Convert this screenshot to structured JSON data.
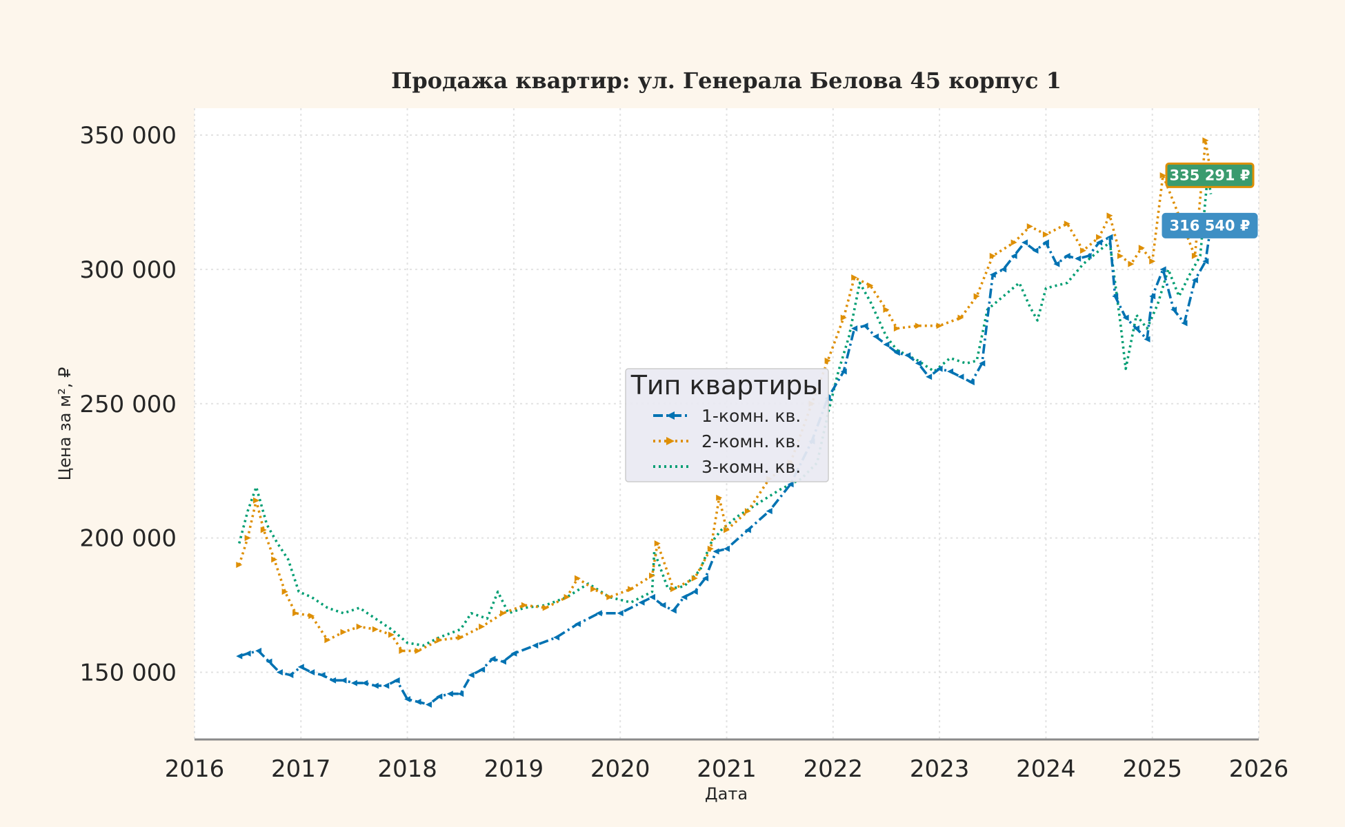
{
  "chart_data": {
    "type": "line",
    "title": "Продажа квартир: ул. Генерала Белова 45 корпус 1",
    "xlabel": "Дата",
    "ylabel": "Цена за м², ₽",
    "xlim": [
      2016,
      2026
    ],
    "ylim": [
      125000,
      360000
    ],
    "x_ticks": [
      "2016",
      "2017",
      "2018",
      "2019",
      "2020",
      "2021",
      "2022",
      "2023",
      "2024",
      "2025",
      "2026"
    ],
    "y_ticks": [
      150000,
      200000,
      250000,
      300000,
      350000
    ],
    "y_tick_labels": [
      "150 000",
      "200 000",
      "250 000",
      "300 000",
      "350 000"
    ],
    "grid": true,
    "legend": {
      "title": "Тип квартиры",
      "placement": "center",
      "entries": [
        "1-комн. кв.",
        "2-комн. кв.",
        "3-комн. кв."
      ]
    },
    "series": [
      {
        "name": "1-комн. кв.",
        "color": "#0072b2",
        "line_style": "dash-dot",
        "marker": "left-triangle",
        "end_label": "316 540 ₽",
        "end_value": 316540,
        "points": [
          [
            2016.42,
            156000
          ],
          [
            2016.5,
            157000
          ],
          [
            2016.6,
            158000
          ],
          [
            2016.7,
            154000
          ],
          [
            2016.8,
            150000
          ],
          [
            2016.9,
            149000
          ],
          [
            2017.0,
            152000
          ],
          [
            2017.1,
            150000
          ],
          [
            2017.2,
            149000
          ],
          [
            2017.3,
            147000
          ],
          [
            2017.4,
            147000
          ],
          [
            2017.5,
            146000
          ],
          [
            2017.6,
            146000
          ],
          [
            2017.7,
            145000
          ],
          [
            2017.8,
            145000
          ],
          [
            2017.9,
            147000
          ],
          [
            2018.0,
            140000
          ],
          [
            2018.1,
            139000
          ],
          [
            2018.2,
            138000
          ],
          [
            2018.3,
            141000
          ],
          [
            2018.4,
            142000
          ],
          [
            2018.5,
            142000
          ],
          [
            2018.6,
            149000
          ],
          [
            2018.7,
            151000
          ],
          [
            2018.8,
            155000
          ],
          [
            2018.9,
            154000
          ],
          [
            2019.0,
            157000
          ],
          [
            2019.2,
            160000
          ],
          [
            2019.4,
            163000
          ],
          [
            2019.6,
            168000
          ],
          [
            2019.8,
            172000
          ],
          [
            2020.0,
            172000
          ],
          [
            2020.2,
            176000
          ],
          [
            2020.3,
            178000
          ],
          [
            2020.4,
            175000
          ],
          [
            2020.5,
            173000
          ],
          [
            2020.6,
            178000
          ],
          [
            2020.7,
            180000
          ],
          [
            2020.8,
            185000
          ],
          [
            2020.9,
            195000
          ],
          [
            2021.0,
            196000
          ],
          [
            2021.2,
            203000
          ],
          [
            2021.4,
            210000
          ],
          [
            2021.6,
            220000
          ],
          [
            2021.8,
            236000
          ],
          [
            2021.95,
            252000
          ],
          [
            2022.1,
            262000
          ],
          [
            2022.2,
            278000
          ],
          [
            2022.3,
            279000
          ],
          [
            2022.4,
            275000
          ],
          [
            2022.5,
            272000
          ],
          [
            2022.6,
            269000
          ],
          [
            2022.7,
            268000
          ],
          [
            2022.8,
            265000
          ],
          [
            2022.9,
            260000
          ],
          [
            2023.0,
            263000
          ],
          [
            2023.1,
            262000
          ],
          [
            2023.2,
            260000
          ],
          [
            2023.3,
            258000
          ],
          [
            2023.4,
            265000
          ],
          [
            2023.5,
            298000
          ],
          [
            2023.6,
            300000
          ],
          [
            2023.7,
            305000
          ],
          [
            2023.8,
            310000
          ],
          [
            2023.9,
            307000
          ],
          [
            2024.0,
            310000
          ],
          [
            2024.1,
            302000
          ],
          [
            2024.2,
            305000
          ],
          [
            2024.3,
            304000
          ],
          [
            2024.4,
            305000
          ],
          [
            2024.5,
            310000
          ],
          [
            2024.6,
            312000
          ],
          [
            2024.65,
            290000
          ],
          [
            2024.75,
            282000
          ],
          [
            2024.85,
            278000
          ],
          [
            2024.95,
            274000
          ],
          [
            2025.0,
            290000
          ],
          [
            2025.1,
            300000
          ],
          [
            2025.2,
            285000
          ],
          [
            2025.3,
            280000
          ],
          [
            2025.4,
            296000
          ],
          [
            2025.5,
            303000
          ],
          [
            2025.55,
            316540
          ]
        ]
      },
      {
        "name": "2-комн. кв.",
        "color": "#de8f05",
        "line_style": "dotted",
        "marker": "right-triangle",
        "end_label": "335 291 ₽",
        "end_value": 335291,
        "points": [
          [
            2016.42,
            190000
          ],
          [
            2016.5,
            200000
          ],
          [
            2016.58,
            214000
          ],
          [
            2016.65,
            203000
          ],
          [
            2016.75,
            192000
          ],
          [
            2016.85,
            180000
          ],
          [
            2016.95,
            172000
          ],
          [
            2017.1,
            171000
          ],
          [
            2017.25,
            162000
          ],
          [
            2017.4,
            165000
          ],
          [
            2017.55,
            167000
          ],
          [
            2017.7,
            166000
          ],
          [
            2017.85,
            164000
          ],
          [
            2017.95,
            158000
          ],
          [
            2018.1,
            158000
          ],
          [
            2018.3,
            162000
          ],
          [
            2018.5,
            163000
          ],
          [
            2018.7,
            167000
          ],
          [
            2018.9,
            172000
          ],
          [
            2019.1,
            175000
          ],
          [
            2019.3,
            174000
          ],
          [
            2019.5,
            178000
          ],
          [
            2019.6,
            185000
          ],
          [
            2019.75,
            181000
          ],
          [
            2019.9,
            178000
          ],
          [
            2020.1,
            181000
          ],
          [
            2020.3,
            186000
          ],
          [
            2020.35,
            198000
          ],
          [
            2020.5,
            181000
          ],
          [
            2020.7,
            185000
          ],
          [
            2020.85,
            196000
          ],
          [
            2020.93,
            215000
          ],
          [
            2021.0,
            203000
          ],
          [
            2021.2,
            210000
          ],
          [
            2021.4,
            222000
          ],
          [
            2021.6,
            228000
          ],
          [
            2021.8,
            250000
          ],
          [
            2021.95,
            266000
          ],
          [
            2022.1,
            282000
          ],
          [
            2022.2,
            297000
          ],
          [
            2022.35,
            294000
          ],
          [
            2022.5,
            285000
          ],
          [
            2022.6,
            278000
          ],
          [
            2022.8,
            279000
          ],
          [
            2023.0,
            279000
          ],
          [
            2023.2,
            282000
          ],
          [
            2023.35,
            290000
          ],
          [
            2023.5,
            305000
          ],
          [
            2023.7,
            310000
          ],
          [
            2023.85,
            316000
          ],
          [
            2024.0,
            313000
          ],
          [
            2024.2,
            317000
          ],
          [
            2024.35,
            307000
          ],
          [
            2024.5,
            312000
          ],
          [
            2024.6,
            320000
          ],
          [
            2024.7,
            305000
          ],
          [
            2024.8,
            302000
          ],
          [
            2024.9,
            308000
          ],
          [
            2025.0,
            303000
          ],
          [
            2025.1,
            335000
          ],
          [
            2025.25,
            320000
          ],
          [
            2025.4,
            305000
          ],
          [
            2025.5,
            348000
          ],
          [
            2025.55,
            335291
          ]
        ]
      },
      {
        "name": "3-комн. кв.",
        "color": "#029e73",
        "line_style": "dotted",
        "marker": "",
        "end_label": "",
        "points": [
          [
            2016.42,
            198000
          ],
          [
            2016.5,
            210000
          ],
          [
            2016.58,
            219000
          ],
          [
            2016.68,
            205000
          ],
          [
            2016.78,
            198000
          ],
          [
            2016.88,
            192000
          ],
          [
            2016.98,
            180000
          ],
          [
            2017.1,
            178000
          ],
          [
            2017.25,
            174000
          ],
          [
            2017.4,
            172000
          ],
          [
            2017.55,
            174000
          ],
          [
            2017.7,
            170000
          ],
          [
            2017.85,
            166000
          ],
          [
            2018.0,
            161000
          ],
          [
            2018.15,
            160000
          ],
          [
            2018.3,
            163000
          ],
          [
            2018.5,
            166000
          ],
          [
            2018.6,
            172000
          ],
          [
            2018.75,
            170000
          ],
          [
            2018.85,
            180000
          ],
          [
            2018.95,
            172000
          ],
          [
            2019.1,
            174000
          ],
          [
            2019.3,
            175000
          ],
          [
            2019.5,
            178000
          ],
          [
            2019.7,
            183000
          ],
          [
            2019.9,
            178000
          ],
          [
            2020.1,
            176000
          ],
          [
            2020.3,
            180000
          ],
          [
            2020.32,
            195000
          ],
          [
            2020.45,
            181000
          ],
          [
            2020.6,
            182000
          ],
          [
            2020.75,
            188000
          ],
          [
            2020.85,
            198000
          ],
          [
            2020.95,
            203000
          ],
          [
            2021.1,
            208000
          ],
          [
            2021.3,
            213000
          ],
          [
            2021.5,
            218000
          ],
          [
            2021.7,
            222000
          ],
          [
            2021.85,
            228000
          ],
          [
            2021.95,
            246000
          ],
          [
            2022.05,
            262000
          ],
          [
            2022.15,
            275000
          ],
          [
            2022.25,
            295000
          ],
          [
            2022.35,
            288000
          ],
          [
            2022.5,
            275000
          ],
          [
            2022.6,
            270000
          ],
          [
            2022.8,
            266000
          ],
          [
            2022.95,
            262000
          ],
          [
            2023.1,
            267000
          ],
          [
            2023.25,
            265000
          ],
          [
            2023.35,
            266000
          ],
          [
            2023.45,
            285000
          ],
          [
            2023.6,
            290000
          ],
          [
            2023.75,
            295000
          ],
          [
            2023.85,
            286000
          ],
          [
            2023.92,
            281000
          ],
          [
            2024.0,
            293000
          ],
          [
            2024.2,
            295000
          ],
          [
            2024.35,
            302000
          ],
          [
            2024.5,
            307000
          ],
          [
            2024.6,
            310000
          ],
          [
            2024.7,
            280000
          ],
          [
            2024.75,
            263000
          ],
          [
            2024.85,
            283000
          ],
          [
            2024.95,
            278000
          ],
          [
            2025.05,
            287000
          ],
          [
            2025.15,
            300000
          ],
          [
            2025.25,
            290000
          ],
          [
            2025.35,
            298000
          ],
          [
            2025.45,
            305000
          ],
          [
            2025.52,
            335000
          ],
          [
            2025.55,
            328000
          ]
        ]
      }
    ]
  }
}
